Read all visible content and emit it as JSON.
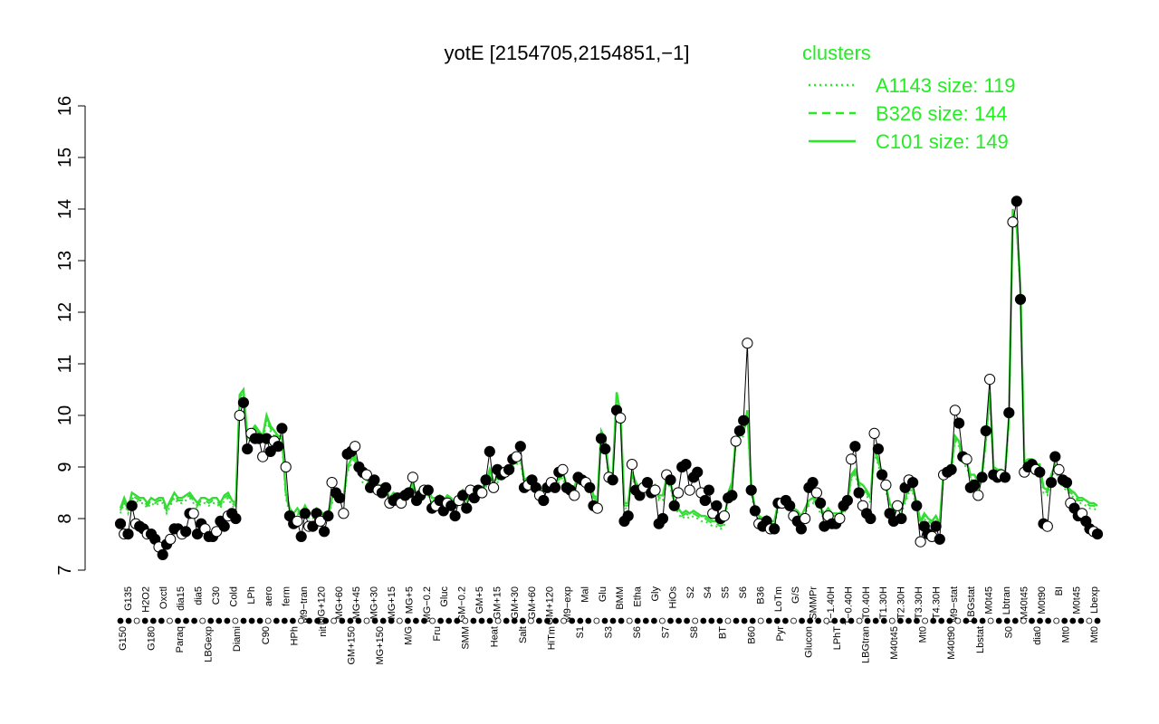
{
  "chart_data": {
    "type": "line",
    "title": "yotE [2154705,2154851,−1]",
    "ylim": [
      7,
      16
    ],
    "yticks": [
      7,
      8,
      9,
      10,
      11,
      12,
      13,
      14,
      15,
      16
    ],
    "legend": {
      "title": "clusters",
      "position": "top-right",
      "entries": [
        {
          "label": "A1143 size: 119",
          "style": "dotted"
        },
        {
          "label": "B326 size: 144",
          "style": "dashed"
        },
        {
          "label": "C101 size: 149",
          "style": "solid"
        }
      ]
    },
    "colors": {
      "line": "#33dd33",
      "legend": "#22ee22",
      "filled_point": "#000000",
      "open_point": "#ffffff"
    },
    "x_labels_top": [
      "G135",
      "H2O2",
      "Oxctl",
      "dia15",
      "dia5",
      "C30",
      "Cold",
      "LPh",
      "aero",
      "ferm",
      "M9−tran",
      "MG+120",
      "MG+60",
      "MG+45",
      "MG+30",
      "MG+15",
      "MG+5",
      "MG−0.2",
      "Gluc",
      "GM−0.2",
      "GM+5",
      "GM+15",
      "GM+30",
      "GM+60",
      "GM+120",
      "M9−exp",
      "Mal",
      "Glu",
      "BMM",
      "Etha",
      "Gly",
      "HiOs",
      "S2",
      "S4",
      "S5",
      "S6",
      "B36",
      "LoTm",
      "G/S",
      "SMMPr",
      "T−1.40H",
      "T−0.40H",
      "T0.40H",
      "T1.30H",
      "T2.30H",
      "T3.30H",
      "T4.30H",
      "M9−stat",
      "LBGstat",
      "M0t45",
      "Lbtran",
      "M40t45",
      "M0t90",
      "BI",
      "M0t45",
      "Lbexp"
    ],
    "x_labels_bottom": [
      "G150",
      "G180",
      "Paraq",
      "LBGexp",
      "Diami",
      "C90",
      "HPh",
      "nit",
      "GM+150",
      "MG+150",
      "M/G",
      "Fru",
      "SMM",
      "Heat",
      "Salt",
      "HiTm",
      "S1",
      "S3",
      "S6",
      "S7",
      "S8",
      "BT",
      "B60",
      "Pyr",
      "Glucon",
      "LPhT",
      "LBGtran",
      "M40t45",
      "Mt0",
      "M40t90",
      "Lbstat",
      "S0",
      "dia0",
      "Mt0",
      "Mt0"
    ],
    "points": [
      7.9,
      7.7,
      7.7,
      8.25,
      7.9,
      7.85,
      7.8,
      7.7,
      7.7,
      7.6,
      7.45,
      7.3,
      7.5,
      7.6,
      7.8,
      7.8,
      7.7,
      7.75,
      8.1,
      8.1,
      7.7,
      7.9,
      7.8,
      7.65,
      7.65,
      7.75,
      7.95,
      7.85,
      8.05,
      8.1,
      8.0,
      10.0,
      10.25,
      9.35,
      9.65,
      9.55,
      9.55,
      9.2,
      9.55,
      9.3,
      9.5,
      9.4,
      9.75,
      9.0,
      8.05,
      7.9,
      7.95,
      7.65,
      8.1,
      7.85,
      7.85,
      8.1,
      7.95,
      7.75,
      8.05,
      8.7,
      8.5,
      8.4,
      8.1,
      9.25,
      9.3,
      9.4,
      9.0,
      8.9,
      8.85,
      8.6,
      8.75,
      8.55,
      8.5,
      8.6,
      8.3,
      8.35,
      8.4,
      8.3,
      8.45,
      8.5,
      8.8,
      8.35,
      8.45,
      8.55,
      8.55,
      8.2,
      8.25,
      8.35,
      8.15,
      8.3,
      8.25,
      8.05,
      8.35,
      8.45,
      8.2,
      8.55,
      8.4,
      8.55,
      8.5,
      8.75,
      9.3,
      8.6,
      8.95,
      8.85,
      8.9,
      8.95,
      9.15,
      9.2,
      9.4,
      8.6,
      8.65,
      8.75,
      8.6,
      8.45,
      8.35,
      8.6,
      8.7,
      8.6,
      8.9,
      8.95,
      8.6,
      8.55,
      8.45,
      8.8,
      8.75,
      8.7,
      8.6,
      8.25,
      8.2,
      9.55,
      9.35,
      8.8,
      8.75,
      10.1,
      9.95,
      7.95,
      8.05,
      9.05,
      8.55,
      8.45,
      8.6,
      8.7,
      8.5,
      8.55,
      7.9,
      8.0,
      8.85,
      8.75,
      8.25,
      8.5,
      9.0,
      9.05,
      8.55,
      8.8,
      8.9,
      8.5,
      8.35,
      8.55,
      8.1,
      8.25,
      8.0,
      8.05,
      8.4,
      8.45,
      9.5,
      9.7,
      9.9,
      11.4,
      8.55,
      8.15,
      7.9,
      7.85,
      7.95,
      7.8,
      7.8,
      8.3,
      8.3,
      8.35,
      8.25,
      8.05,
      7.95,
      7.8,
      8.0,
      8.6,
      8.7,
      8.5,
      8.3,
      7.85,
      8.05,
      7.9,
      7.9,
      8.0,
      8.25,
      8.35,
      9.15,
      9.4,
      8.5,
      8.25,
      8.1,
      8.0,
      9.65,
      9.35,
      8.85,
      8.65,
      8.1,
      7.95,
      8.25,
      8.0,
      8.6,
      8.75,
      8.7,
      8.25,
      7.55,
      7.85,
      7.7,
      7.65,
      7.85,
      7.6,
      8.85,
      8.9,
      8.95,
      10.1,
      9.85,
      9.2,
      9.15,
      8.6,
      8.65,
      8.45,
      8.8,
      9.7,
      10.7,
      8.85,
      8.8,
      8.85,
      8.8,
      10.05,
      13.75,
      14.15,
      12.25,
      8.9,
      9.0,
      9.05,
      8.95,
      8.9,
      7.9,
      7.85,
      8.7,
      9.2,
      8.95,
      8.75,
      8.7,
      8.3,
      8.2,
      8.05,
      8.1,
      7.95,
      7.8,
      7.75,
      7.7
    ],
    "lines": {
      "A1143 size: 119": [
        8.1,
        8.3,
        8.1,
        8.4,
        8.35,
        8.3,
        8.3,
        8.2,
        8.3,
        8.25,
        8.3,
        8.3,
        8.1,
        8.25,
        8.4,
        8.3,
        8.3,
        8.35,
        8.4,
        8.3,
        8.2,
        8.3,
        8.3,
        8.25,
        8.3,
        8.3,
        8.2,
        8.35,
        8.4,
        8.25,
        8.2,
        10.3,
        10.4,
        9.5,
        9.6,
        9.7,
        9.6,
        9.5,
        9.9,
        9.7,
        9.6,
        9.5,
        9.5,
        8.4,
        8.1,
        8.0,
        8.1,
        8.0,
        8.15,
        8.0,
        8.0,
        8.1,
        8.05,
        7.95,
        8.0,
        8.3,
        8.35,
        8.4,
        8.3,
        8.9,
        9.05,
        9.1,
        8.9,
        8.7,
        8.7,
        8.6,
        8.6,
        8.55,
        8.55,
        8.5,
        8.3,
        8.4,
        8.35,
        8.4,
        8.45,
        8.45,
        8.6,
        8.35,
        8.5,
        8.45,
        8.45,
        8.3,
        8.3,
        8.35,
        8.25,
        8.35,
        8.3,
        8.2,
        8.35,
        8.45,
        8.3,
        8.5,
        8.4,
        8.45,
        8.5,
        8.6,
        8.85,
        8.6,
        8.7,
        8.75,
        8.8,
        8.85,
        8.95,
        9.05,
        9.1,
        8.65,
        8.7,
        8.7,
        8.6,
        8.5,
        8.45,
        8.6,
        8.65,
        8.55,
        8.7,
        8.8,
        8.55,
        8.55,
        8.5,
        8.75,
        8.7,
        8.65,
        8.6,
        8.35,
        8.3,
        9.6,
        9.45,
        8.75,
        8.75,
        10.35,
        9.95,
        8.2,
        8.2,
        8.8,
        8.6,
        8.5,
        8.55,
        8.6,
        8.5,
        8.55,
        8.35,
        8.35,
        8.7,
        8.6,
        8.25,
        8.1,
        8.0,
        8.05,
        8.0,
        8.05,
        8.0,
        7.95,
        7.95,
        7.9,
        7.85,
        7.85,
        7.8,
        7.85,
        8.4,
        8.6,
        9.45,
        9.55,
        9.6,
        10.0,
        8.5,
        8.1,
        7.95,
        7.9,
        7.95,
        7.85,
        7.85,
        8.2,
        8.25,
        8.3,
        8.2,
        8.1,
        8.05,
        7.95,
        8.1,
        8.25,
        8.3,
        8.25,
        8.1,
        8.0,
        8.1,
        8.0,
        8.0,
        8.0,
        8.1,
        8.2,
        8.75,
        8.85,
        8.6,
        8.55,
        8.45,
        8.3,
        9.25,
        9.05,
        8.75,
        8.55,
        8.2,
        8.05,
        8.2,
        8.1,
        8.3,
        8.5,
        8.5,
        8.2,
        7.85,
        8.0,
        7.9,
        7.85,
        7.95,
        7.8,
        8.85,
        8.85,
        8.9,
        9.5,
        9.4,
        9.05,
        9.0,
        8.75,
        8.75,
        8.6,
        8.8,
        9.45,
        10.35,
        8.9,
        8.85,
        8.85,
        8.8,
        9.85,
        13.9,
        13.6,
        12.4,
        9.0,
        9.05,
        9.05,
        8.95,
        8.95,
        8.5,
        8.45,
        8.75,
        8.95,
        8.75,
        8.6,
        8.55,
        8.45,
        8.4,
        8.3,
        8.3,
        8.25,
        8.2,
        8.2,
        8.15
      ],
      "B326 size: 144": [
        8.15,
        8.35,
        8.15,
        8.45,
        8.4,
        8.35,
        8.35,
        8.25,
        8.35,
        8.3,
        8.35,
        8.35,
        8.15,
        8.3,
        8.45,
        8.35,
        8.35,
        8.4,
        8.45,
        8.35,
        8.25,
        8.35,
        8.35,
        8.3,
        8.35,
        8.35,
        8.25,
        8.4,
        8.45,
        8.3,
        8.25,
        10.35,
        10.45,
        9.55,
        9.65,
        9.75,
        9.65,
        9.55,
        9.95,
        9.75,
        9.65,
        9.55,
        9.55,
        8.45,
        8.15,
        8.05,
        8.15,
        8.05,
        8.2,
        8.05,
        8.05,
        8.15,
        8.1,
        8.0,
        8.05,
        8.35,
        8.4,
        8.45,
        8.35,
        8.95,
        9.1,
        9.15,
        8.95,
        8.75,
        8.75,
        8.65,
        8.65,
        8.6,
        8.6,
        8.55,
        8.35,
        8.45,
        8.4,
        8.45,
        8.5,
        8.5,
        8.65,
        8.4,
        8.55,
        8.5,
        8.5,
        8.35,
        8.35,
        8.4,
        8.3,
        8.4,
        8.35,
        8.25,
        8.4,
        8.5,
        8.35,
        8.55,
        8.45,
        8.5,
        8.55,
        8.65,
        8.9,
        8.65,
        8.75,
        8.8,
        8.85,
        8.9,
        9.0,
        9.1,
        9.15,
        8.7,
        8.75,
        8.75,
        8.65,
        8.55,
        8.5,
        8.65,
        8.7,
        8.6,
        8.75,
        8.85,
        8.6,
        8.6,
        8.55,
        8.8,
        8.75,
        8.7,
        8.65,
        8.4,
        8.35,
        9.65,
        9.5,
        8.8,
        8.8,
        10.4,
        10.0,
        8.25,
        8.25,
        8.85,
        8.65,
        8.55,
        8.6,
        8.65,
        8.55,
        8.6,
        8.4,
        8.4,
        8.75,
        8.65,
        8.3,
        8.15,
        8.05,
        8.1,
        8.05,
        8.1,
        8.05,
        8.0,
        8.0,
        7.95,
        7.9,
        7.9,
        7.85,
        7.9,
        8.45,
        8.65,
        9.5,
        9.6,
        9.65,
        10.05,
        8.55,
        8.15,
        8.0,
        7.95,
        8.0,
        7.9,
        7.9,
        8.25,
        8.3,
        8.35,
        8.25,
        8.15,
        8.1,
        8.0,
        8.15,
        8.3,
        8.35,
        8.3,
        8.15,
        8.05,
        8.15,
        8.05,
        8.05,
        8.05,
        8.15,
        8.25,
        8.8,
        8.9,
        8.65,
        8.6,
        8.5,
        8.35,
        9.3,
        9.1,
        8.8,
        8.6,
        8.25,
        8.1,
        8.25,
        8.15,
        8.35,
        8.55,
        8.55,
        8.25,
        7.9,
        8.05,
        7.95,
        7.9,
        8.0,
        7.85,
        8.9,
        8.9,
        8.95,
        9.55,
        9.45,
        9.1,
        9.05,
        8.8,
        8.8,
        8.65,
        8.85,
        9.5,
        10.4,
        8.95,
        8.9,
        8.9,
        8.85,
        9.9,
        13.95,
        13.65,
        12.45,
        9.05,
        9.1,
        9.1,
        9.0,
        9.0,
        8.55,
        8.5,
        8.8,
        9.0,
        8.8,
        8.65,
        8.6,
        8.5,
        8.45,
        8.35,
        8.35,
        8.3,
        8.25,
        8.25,
        8.2
      ],
      "C101 size: 149": [
        8.2,
        8.4,
        8.2,
        8.5,
        8.45,
        8.4,
        8.4,
        8.3,
        8.4,
        8.35,
        8.4,
        8.4,
        8.2,
        8.35,
        8.5,
        8.4,
        8.4,
        8.45,
        8.5,
        8.4,
        8.3,
        8.4,
        8.4,
        8.35,
        8.4,
        8.4,
        8.3,
        8.45,
        8.5,
        8.35,
        8.3,
        10.4,
        10.5,
        9.6,
        9.7,
        9.8,
        9.7,
        9.6,
        10.0,
        9.8,
        9.7,
        9.6,
        9.6,
        8.5,
        8.2,
        8.1,
        8.2,
        8.1,
        8.25,
        8.1,
        8.1,
        8.2,
        8.15,
        8.05,
        8.1,
        8.4,
        8.45,
        8.5,
        8.4,
        9.0,
        9.15,
        9.2,
        9.0,
        8.8,
        8.8,
        8.7,
        8.7,
        8.65,
        8.65,
        8.6,
        8.4,
        8.5,
        8.45,
        8.5,
        8.55,
        8.55,
        8.7,
        8.45,
        8.6,
        8.55,
        8.55,
        8.4,
        8.4,
        8.45,
        8.35,
        8.45,
        8.4,
        8.3,
        8.45,
        8.55,
        8.4,
        8.6,
        8.5,
        8.55,
        8.6,
        8.7,
        8.95,
        8.7,
        8.8,
        8.85,
        8.9,
        8.95,
        9.05,
        9.15,
        9.2,
        8.75,
        8.8,
        8.8,
        8.7,
        8.6,
        8.55,
        8.7,
        8.75,
        8.65,
        8.8,
        8.9,
        8.65,
        8.65,
        8.6,
        8.85,
        8.8,
        8.75,
        8.7,
        8.45,
        8.4,
        9.7,
        9.55,
        8.85,
        8.85,
        10.45,
        10.05,
        8.3,
        8.3,
        8.9,
        8.7,
        8.6,
        8.65,
        8.7,
        8.6,
        8.65,
        8.45,
        8.45,
        8.8,
        8.7,
        8.35,
        8.2,
        8.1,
        8.15,
        8.1,
        8.15,
        8.1,
        8.05,
        8.05,
        8.0,
        7.95,
        7.95,
        7.9,
        7.95,
        8.5,
        8.7,
        9.55,
        9.65,
        9.7,
        10.1,
        8.6,
        8.2,
        8.05,
        8.0,
        8.05,
        7.95,
        7.95,
        8.3,
        8.35,
        8.4,
        8.3,
        8.2,
        8.15,
        8.05,
        8.2,
        8.35,
        8.4,
        8.35,
        8.2,
        8.1,
        8.2,
        8.1,
        8.1,
        8.1,
        8.2,
        8.3,
        8.85,
        8.95,
        8.7,
        8.65,
        8.55,
        8.4,
        9.35,
        9.15,
        8.85,
        8.65,
        8.3,
        8.15,
        8.3,
        8.2,
        8.4,
        8.6,
        8.6,
        8.3,
        7.95,
        8.1,
        8.0,
        7.95,
        8.05,
        7.9,
        8.95,
        8.95,
        9.0,
        9.6,
        9.5,
        9.15,
        9.1,
        8.85,
        8.85,
        8.7,
        8.9,
        9.55,
        10.45,
        9.0,
        8.95,
        8.95,
        8.9,
        9.95,
        14.0,
        13.7,
        12.5,
        9.1,
        9.15,
        9.15,
        9.05,
        9.05,
        8.6,
        8.55,
        8.85,
        9.05,
        8.85,
        8.7,
        8.65,
        8.55,
        8.5,
        8.4,
        8.4,
        8.35,
        8.3,
        8.3,
        8.25
      ]
    }
  }
}
